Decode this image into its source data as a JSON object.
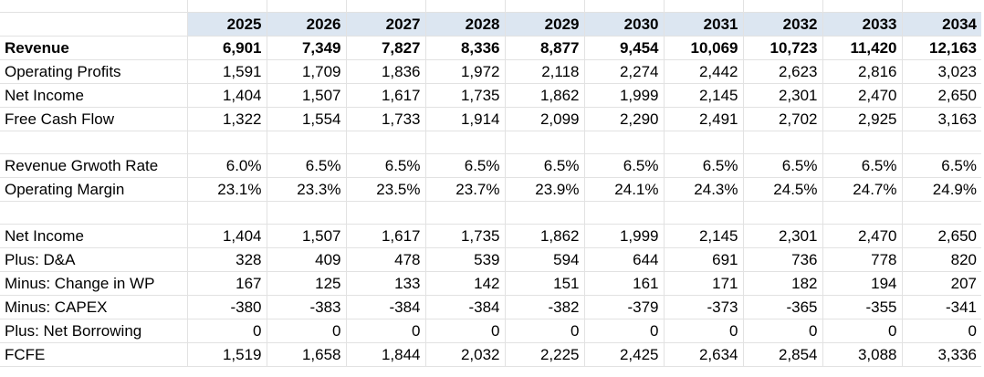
{
  "years": [
    "2025",
    "2026",
    "2027",
    "2028",
    "2029",
    "2030",
    "2031",
    "2032",
    "2033",
    "2034"
  ],
  "rows": [
    {
      "label": "Revenue",
      "bold": true,
      "values": [
        "6,901",
        "7,349",
        "7,827",
        "8,336",
        "8,877",
        "9,454",
        "10,069",
        "10,723",
        "11,420",
        "12,163"
      ]
    },
    {
      "label": "Operating Profits",
      "values": [
        "1,591",
        "1,709",
        "1,836",
        "1,972",
        "2,118",
        "2,274",
        "2,442",
        "2,623",
        "2,816",
        "3,023"
      ]
    },
    {
      "label": "Net Income",
      "values": [
        "1,404",
        "1,507",
        "1,617",
        "1,735",
        "1,862",
        "1,999",
        "2,145",
        "2,301",
        "2,470",
        "2,650"
      ]
    },
    {
      "label": "Free Cash Flow",
      "values": [
        "1,322",
        "1,554",
        "1,733",
        "1,914",
        "2,099",
        "2,290",
        "2,491",
        "2,702",
        "2,925",
        "3,163"
      ]
    },
    {
      "blank": true
    },
    {
      "label": "Revenue Grwoth Rate",
      "values": [
        "6.0%",
        "6.5%",
        "6.5%",
        "6.5%",
        "6.5%",
        "6.5%",
        "6.5%",
        "6.5%",
        "6.5%",
        "6.5%"
      ]
    },
    {
      "label": "Operating Margin",
      "values": [
        "23.1%",
        "23.3%",
        "23.5%",
        "23.7%",
        "23.9%",
        "24.1%",
        "24.3%",
        "24.5%",
        "24.7%",
        "24.9%"
      ]
    },
    {
      "blank": true
    },
    {
      "label": "Net Income",
      "values": [
        "1,404",
        "1,507",
        "1,617",
        "1,735",
        "1,862",
        "1,999",
        "2,145",
        "2,301",
        "2,470",
        "2,650"
      ]
    },
    {
      "label": "Plus: D&A",
      "values": [
        "328",
        "409",
        "478",
        "539",
        "594",
        "644",
        "691",
        "736",
        "778",
        "820"
      ]
    },
    {
      "label": "Minus: Change in WP",
      "values": [
        "167",
        "125",
        "133",
        "142",
        "151",
        "161",
        "171",
        "182",
        "194",
        "207"
      ]
    },
    {
      "label": "Minus: CAPEX",
      "values": [
        "-380",
        "-383",
        "-384",
        "-384",
        "-382",
        "-379",
        "-373",
        "-365",
        "-355",
        "-341"
      ]
    },
    {
      "label": "Plus: Net Borrowing",
      "values": [
        "0",
        "0",
        "0",
        "0",
        "0",
        "0",
        "0",
        "0",
        "0",
        "0"
      ]
    },
    {
      "label": "FCFE",
      "values": [
        "1,519",
        "1,658",
        "1,844",
        "2,032",
        "2,225",
        "2,425",
        "2,634",
        "2,854",
        "3,088",
        "3,336"
      ]
    }
  ]
}
